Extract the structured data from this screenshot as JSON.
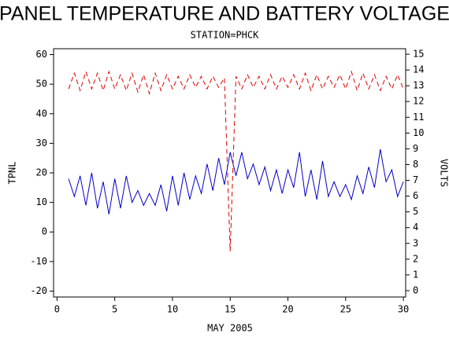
{
  "chart_data": {
    "type": "line",
    "title": "PANEL TEMPERATURE AND BATTERY VOLTAGE",
    "subtitle": "STATION=PHCK",
    "x_label": "MAY 2005",
    "y_label": "TPNL",
    "y2_label": "VOLTS",
    "x": [
      1,
      1.5,
      2,
      2.5,
      3,
      3.5,
      4,
      4.5,
      5,
      5.5,
      6,
      6.5,
      7,
      7.5,
      8,
      8.5,
      9,
      9.5,
      10,
      10.5,
      11,
      11.5,
      12,
      12.5,
      13,
      13.5,
      14,
      14.5,
      15,
      15.5,
      16,
      16.5,
      17,
      17.5,
      18,
      18.5,
      19,
      19.5,
      20,
      20.5,
      21,
      21.5,
      22,
      22.5,
      23,
      23.5,
      24,
      24.5,
      25,
      25.5,
      26,
      26.5,
      27,
      27.5,
      28,
      28.5,
      29,
      29.5,
      30
    ],
    "series": [
      {
        "name": "TPNL",
        "color": "#0000cc",
        "values": [
          18,
          12,
          19,
          9,
          20,
          8,
          17,
          6,
          18,
          8,
          19,
          10,
          14,
          9,
          13,
          9,
          16,
          7,
          19,
          9,
          20,
          11,
          19,
          13,
          23,
          14,
          25,
          16,
          27,
          19,
          27,
          18,
          23,
          16,
          22,
          14,
          21,
          13,
          21,
          15,
          27,
          12,
          21,
          11,
          24,
          12,
          17,
          12,
          16,
          11,
          19,
          13,
          22,
          15,
          28,
          17,
          21,
          12,
          17
        ]
      },
      {
        "name": "VOLTS",
        "color": "#dd0000",
        "axis": "y2",
        "dashed": true,
        "values": [
          12.8,
          13.8,
          12.7,
          13.9,
          12.8,
          13.8,
          12.7,
          13.9,
          12.8,
          13.7,
          12.7,
          13.8,
          12.6,
          13.7,
          12.5,
          13.8,
          12.7,
          13.7,
          12.8,
          13.6,
          12.8,
          13.7,
          12.9,
          13.6,
          12.8,
          13.6,
          12.9,
          13.5,
          2.5,
          13.6,
          12.8,
          13.7,
          12.9,
          13.6,
          12.8,
          13.7,
          12.8,
          13.6,
          12.9,
          13.7,
          12.8,
          13.8,
          12.7,
          13.7,
          12.8,
          13.6,
          12.9,
          13.7,
          12.8,
          13.9,
          12.7,
          13.8,
          12.8,
          13.7,
          12.7,
          13.6,
          12.8,
          13.7,
          12.8
        ]
      }
    ],
    "xlim": [
      -0.3,
      30.2
    ],
    "xticks": [
      0,
      5,
      10,
      15,
      20,
      25,
      30
    ],
    "ylim": [
      -22,
      62
    ],
    "yticks": [
      -20,
      -10,
      0,
      10,
      20,
      30,
      40,
      50,
      60
    ],
    "y2lim": [
      -0.4,
      15.35
    ],
    "y2ticks": [
      0,
      1,
      2,
      3,
      4,
      5,
      6,
      7,
      8,
      9,
      10,
      11,
      12,
      13,
      14,
      15
    ]
  }
}
